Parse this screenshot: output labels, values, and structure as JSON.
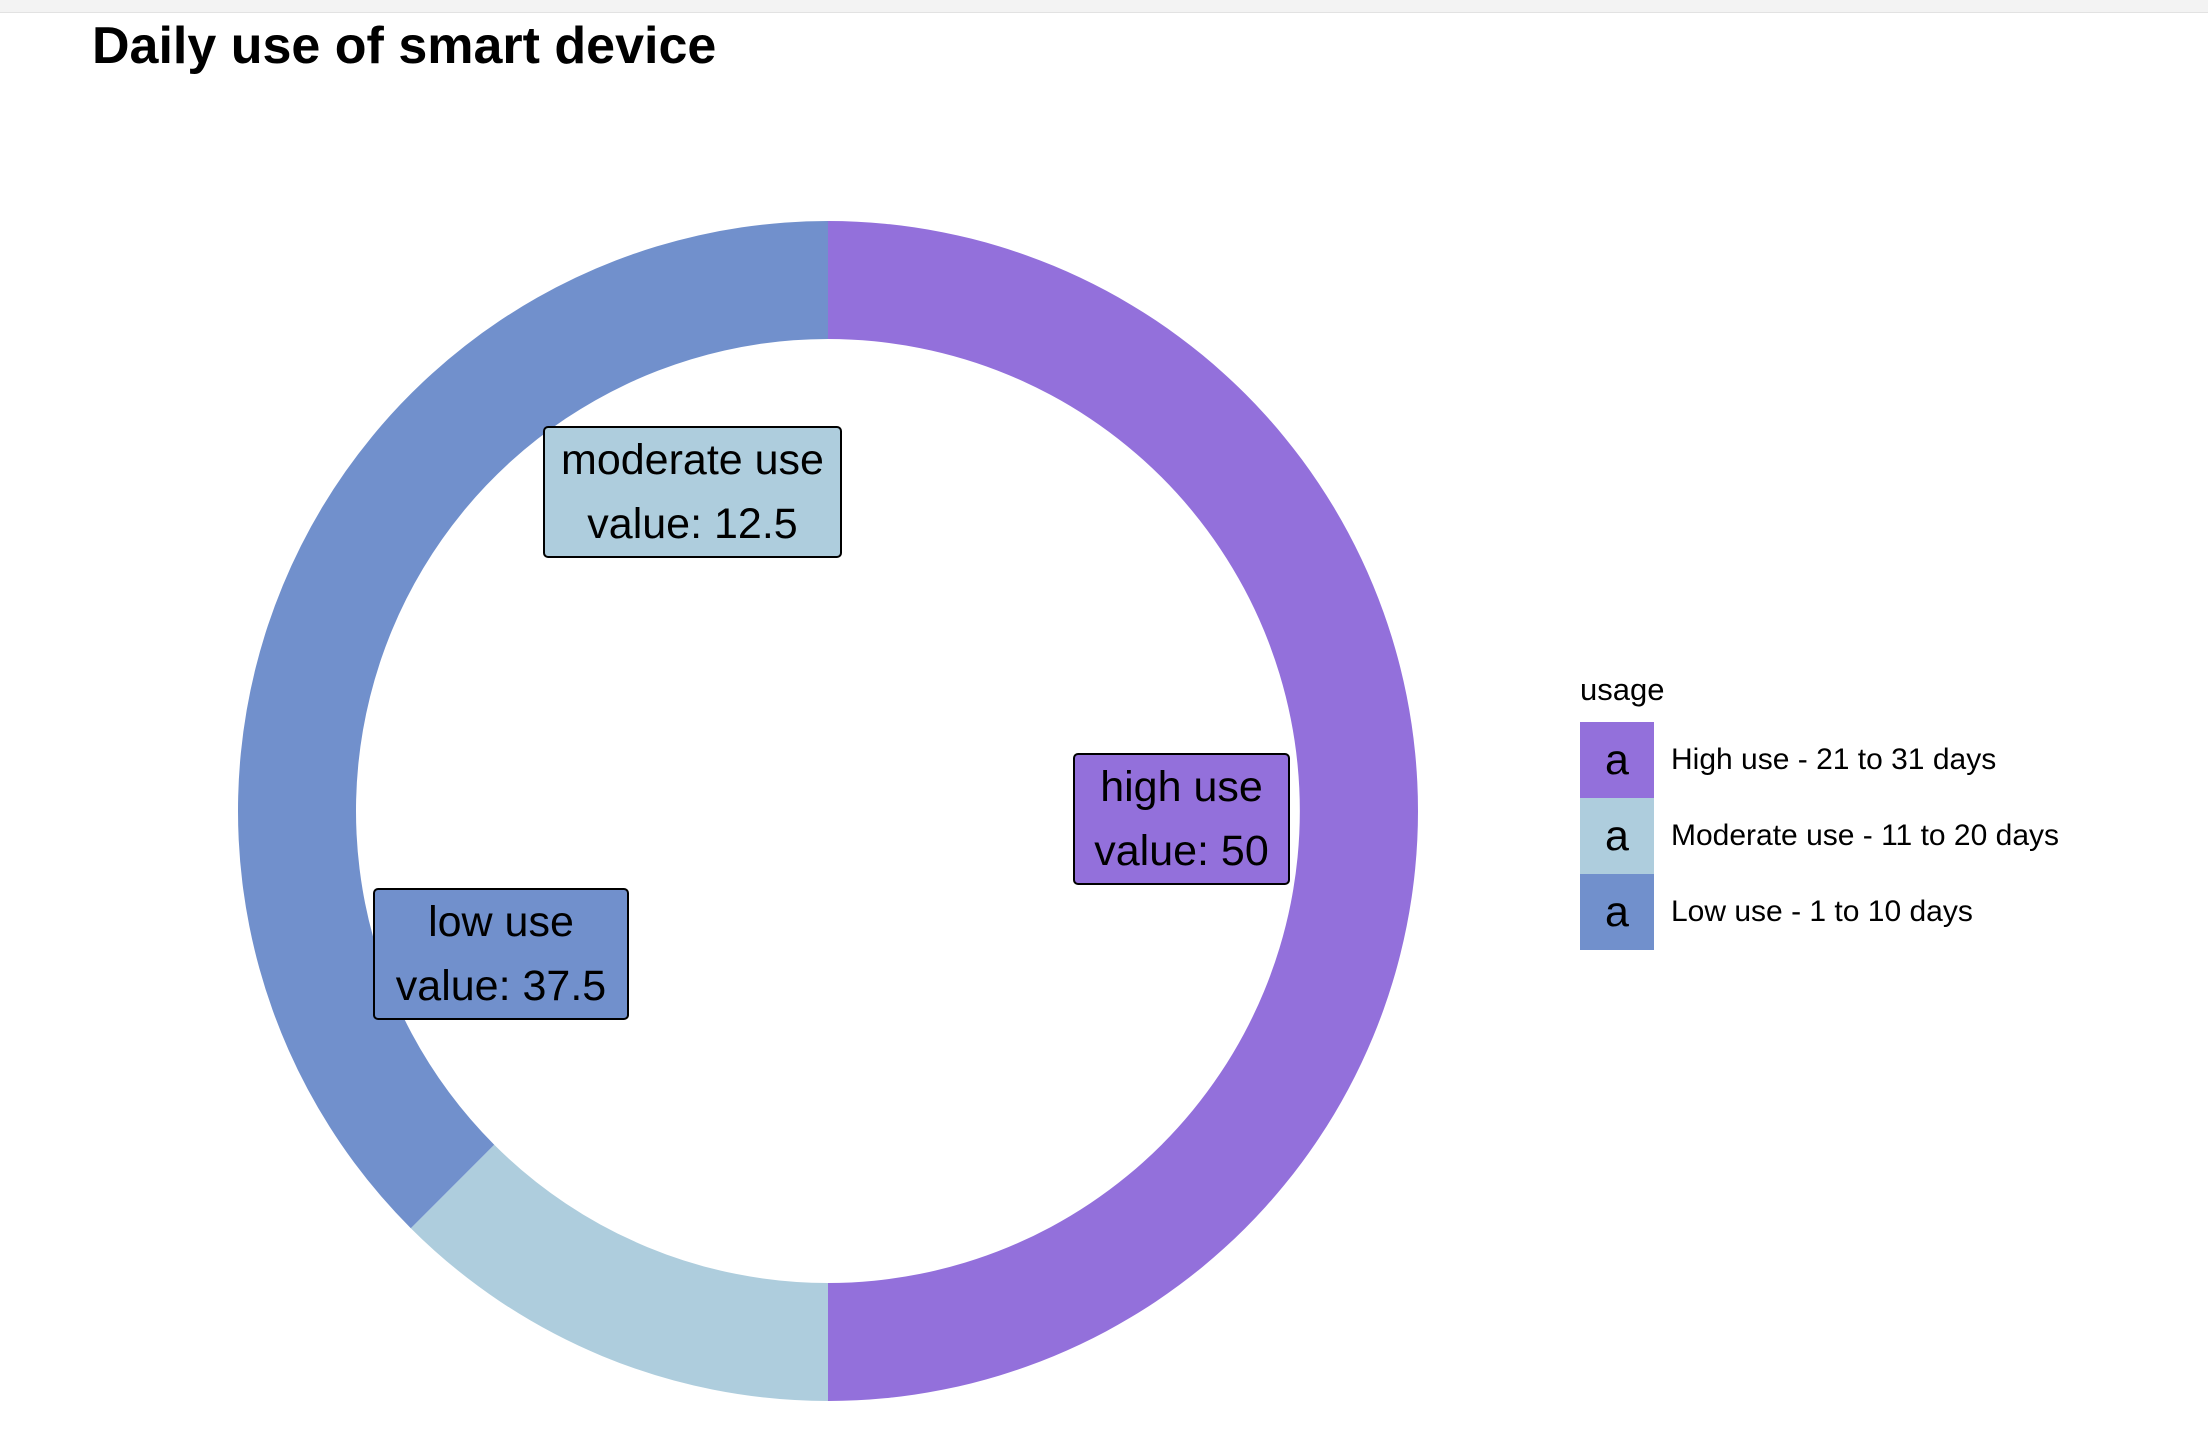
{
  "chart_data": {
    "type": "pie",
    "variant": "donut",
    "title": "Daily use of smart device",
    "slices": [
      {
        "label": "high use",
        "value_text": "value: 50",
        "value": 50,
        "color": "#9370DB"
      },
      {
        "label": "moderate use",
        "value_text": "value: 12.5",
        "value": 12.5,
        "color": "#AECDDD"
      },
      {
        "label": "low use",
        "value_text": "value: 37.5",
        "value": 37.5,
        "color": "#7190CC"
      }
    ],
    "legend": {
      "title": "usage",
      "placement": "right",
      "key_glyph": "a",
      "entries": [
        {
          "label": "High use - 21 to 31 days",
          "color": "#9370DB"
        },
        {
          "label": "Moderate use - 11 to 20 days",
          "color": "#AECDDD"
        },
        {
          "label": "Low use - 1 to 10 days",
          "color": "#7190CC"
        }
      ]
    }
  }
}
